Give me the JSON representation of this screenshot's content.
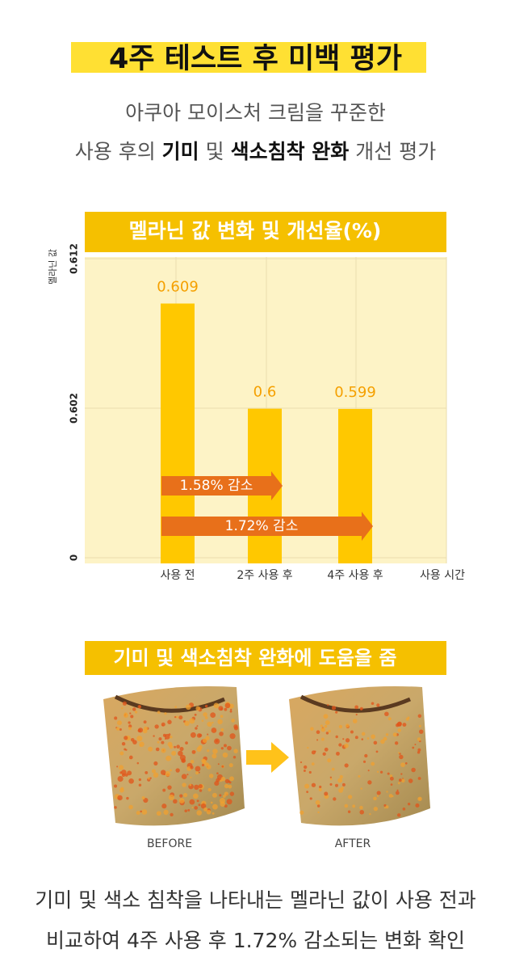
{
  "header": {
    "title": "4주 테스트 후 미백 평가",
    "subtitle_line1": "아쿠아 모이스처 크림을 꾸준한",
    "subtitle_line2": [
      "사용 후의 ",
      "기미",
      " 및 ",
      "색소침착 완화",
      " 개선 평가"
    ]
  },
  "chart_data": {
    "type": "bar",
    "title": "멜라닌 값 변화 및 개선율(%)",
    "y_label": "멜라닌 값",
    "x_label": "사용 시간",
    "categories": [
      "사용 전",
      "2주 사용 후",
      "4주 사용 후"
    ],
    "values": [
      0.609,
      0.6,
      0.599
    ],
    "color": "#ffc800",
    "ylim": [
      0,
      0.612
    ],
    "yticks": [
      0,
      0.602,
      0.612
    ],
    "grid": true,
    "annotations": [
      "1.58% 감소",
      "1.72% 감소"
    ]
  },
  "comparison": {
    "title": "기미 및 색소침착 완화에 도움을 줌",
    "before": "BEFORE",
    "after": "AFTER"
  },
  "caption": [
    "기미 및 색소 침착을 나타내는 멜라닌 값이 사용 전과",
    "비교하여 4주 사용 후 1.72% 감소되는 변화 확인"
  ]
}
